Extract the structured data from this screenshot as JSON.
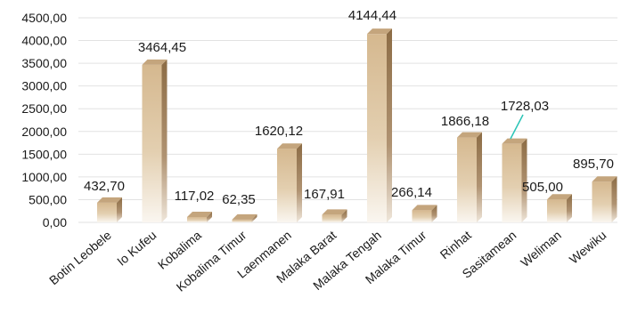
{
  "chart_data": {
    "type": "bar",
    "title": "",
    "xlabel": "",
    "ylabel": "",
    "ylim": [
      0,
      4500
    ],
    "yticks": [
      0,
      500,
      1000,
      1500,
      2000,
      2500,
      3000,
      3500,
      4000,
      4500
    ],
    "ytick_labels": [
      "0,00",
      "500,00",
      "1000,00",
      "1500,00",
      "2000,00",
      "2500,00",
      "3000,00",
      "3500,00",
      "4000,00",
      "4500,00"
    ],
    "grid": true,
    "legend": "none",
    "style": "3d-column",
    "bar_color": "#d9bf99",
    "categories": [
      "Botin Leobele",
      "Io Kufeu",
      "Kobalima",
      "Kobalima Timur",
      "Laenmanen",
      "Malaka Barat",
      "Malaka Tengah",
      "Malaka Timur",
      "Rinhat",
      "Sasitamean",
      "Weliman",
      "Wewiku"
    ],
    "values": [
      432.7,
      3464.45,
      117.02,
      62.35,
      1620.12,
      167.91,
      4144.44,
      266.14,
      1866.18,
      1728.03,
      505.0,
      895.7
    ],
    "value_labels": [
      "432,70",
      "3464,45",
      "117,02",
      "62,35",
      "1620,12",
      "167,91",
      "4144,44",
      "266,14",
      "1866,18",
      "1728,03",
      "505,00",
      "895,70"
    ]
  }
}
